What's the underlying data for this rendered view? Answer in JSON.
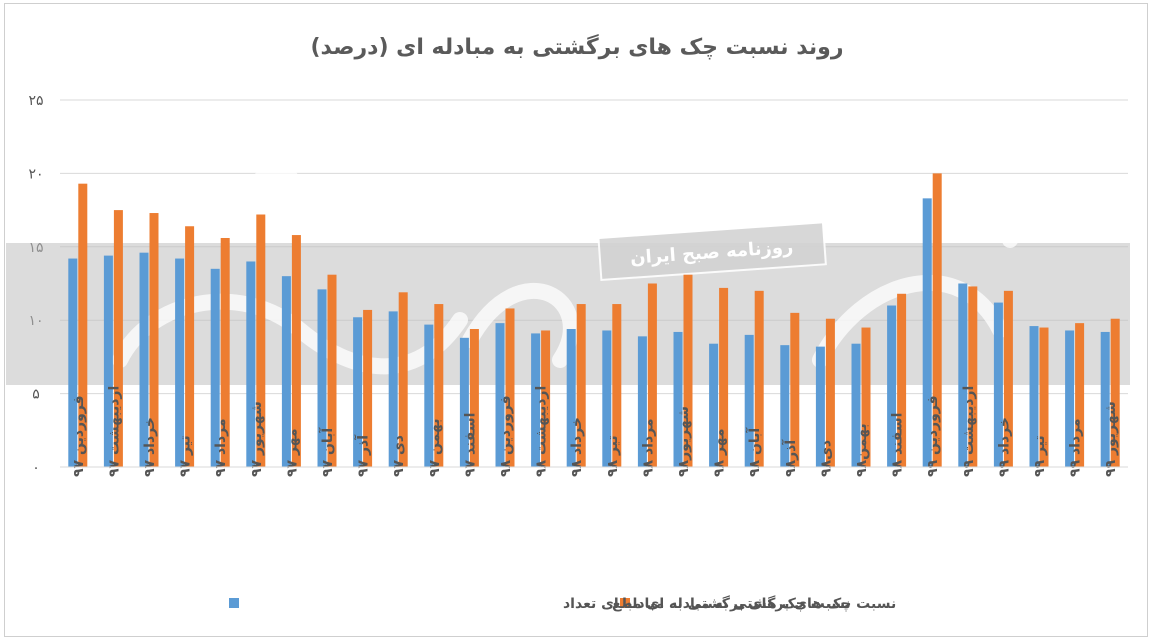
{
  "colors": {
    "series1": "#5b9bd5",
    "series2": "#ed7d31",
    "grid": "#d9d9d9",
    "text": "#595959",
    "watermark_band": "#bfbfbf"
  },
  "watermark": {
    "text": "روزنامه صبح ایران"
  },
  "chart_data": {
    "type": "bar",
    "title": "روند نسبت چک های برگشتی به مبادله ای (درصد)",
    "ylim": [
      0,
      25
    ],
    "yticks": [
      "۰",
      "۵",
      "۱۰",
      "۱۵",
      "۲۰",
      "۲۵"
    ],
    "ytick_values": [
      0,
      5,
      10,
      15,
      20,
      25
    ],
    "grid": true,
    "legend_position": "bottom",
    "categories": [
      "فروردین ۹۷",
      "اردیبهشت ۹۷",
      "خرداد ۹۷",
      "تیر ۹۷",
      "مرداد ۹۷",
      "شهریور ۹۷",
      "مهر ۹۷",
      "آبان ۹۷",
      "آذر ۹۷",
      "دی ۹۷",
      "بهمن ۹۷",
      "اسفند ۹۷",
      "فروردین ۹۸",
      "اردیبهشت ۹۸",
      "خرداد ۹۸",
      "تیر ۹۸",
      "مرداد ۹۸",
      "شهریور۹۸",
      "مهر ۹۸",
      "آبان ۹۸",
      "آذر۹۸",
      "دی۹۸",
      "بهمن۹۸",
      "اسفند ۹۸",
      "فروردین ۹۹",
      "اردیبهشت ۹۹",
      "خرداد ۹۹",
      "تیر ۹۹",
      "مرداد ۹۹",
      "شهریور ۹۹"
    ],
    "series": [
      {
        "name": "نسبت چک های برگشتی به مبادله ای تعداد",
        "values": [
          14.2,
          14.4,
          14.6,
          14.2,
          13.5,
          14.0,
          13.0,
          12.1,
          10.2,
          10.6,
          9.7,
          8.8,
          9.8,
          9.1,
          9.4,
          9.3,
          8.9,
          9.2,
          8.4,
          9.0,
          8.3,
          8.2,
          8.4,
          11.0,
          18.3,
          12.5,
          11.2,
          9.6,
          9.3,
          9.2
        ]
      },
      {
        "name": "نسبت چک های برگشتی به مبادله ای مبلغ",
        "values": [
          19.3,
          17.5,
          17.3,
          16.4,
          15.6,
          17.2,
          15.8,
          13.1,
          10.7,
          11.9,
          11.1,
          9.4,
          10.8,
          9.3,
          11.1,
          11.1,
          12.5,
          13.1,
          12.2,
          12.0,
          10.5,
          10.1,
          9.5,
          11.8,
          20.0,
          12.3,
          12.0,
          9.5,
          9.8,
          10.1
        ]
      }
    ]
  }
}
